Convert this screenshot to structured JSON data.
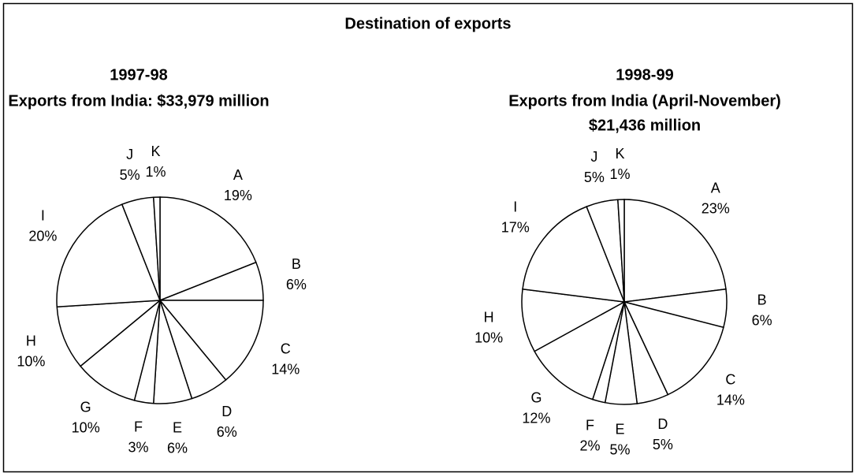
{
  "title": "Destination of exports",
  "chart_data": [
    {
      "type": "pie",
      "title": "1997-98",
      "subtitle": [
        "Exports from India: $33,979 million"
      ],
      "categories": [
        "A",
        "B",
        "C",
        "D",
        "E",
        "F",
        "G",
        "H",
        "I",
        "J",
        "K"
      ],
      "values": [
        19,
        6,
        14,
        6,
        6,
        3,
        10,
        10,
        20,
        5,
        1
      ],
      "value_labels": [
        "19%",
        "6%",
        "14%",
        "6%",
        "6%",
        "3%",
        "10%",
        "10%",
        "20%",
        "5%",
        "1%"
      ],
      "color": "#ffffff"
    },
    {
      "type": "pie",
      "title": "1998-99",
      "subtitle": [
        "Exports from India (April-November)",
        "$21,436 million"
      ],
      "categories": [
        "A",
        "B",
        "C",
        "D",
        "E",
        "F",
        "G",
        "H",
        "I",
        "J",
        "K"
      ],
      "values": [
        23,
        6,
        14,
        5,
        5,
        2,
        12,
        10,
        17,
        5,
        1
      ],
      "value_labels": [
        "23%",
        "6%",
        "14%",
        "5%",
        "5%",
        "2%",
        "12%",
        "10%",
        "17%",
        "5%",
        "1%"
      ],
      "color": "#ffffff"
    }
  ]
}
